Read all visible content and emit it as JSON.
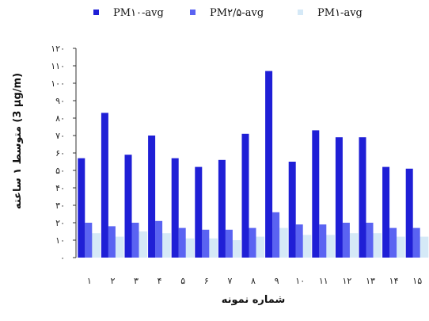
{
  "chart_data": {
    "type": "bar",
    "categories": [
      "١",
      "٢",
      "٣",
      "۴",
      "۵",
      "۶",
      "٧",
      "٨",
      "٩",
      "١٠",
      "١١",
      "١٢",
      "١٣",
      "١۴",
      "١۵"
    ],
    "series": [
      {
        "name": "PM١٠-avg",
        "color": "#1f1fd6",
        "values": [
          57,
          83,
          59,
          70,
          57,
          52,
          56,
          71,
          107,
          55,
          73,
          69,
          69,
          52,
          51
        ]
      },
      {
        "name": "PM٢/۵-avg",
        "color": "#5a63f2",
        "values": [
          20,
          18,
          20,
          21,
          17,
          16,
          16,
          17,
          26,
          19,
          19,
          20,
          20,
          17,
          17
        ]
      },
      {
        "name": "PM١-avg",
        "color": "#d5e9f7",
        "values": [
          14,
          12,
          15,
          14,
          11,
          11,
          10,
          12,
          17,
          13,
          13,
          14,
          14,
          12,
          12
        ]
      }
    ],
    "yticks": [
      "٠",
      "١٠",
      "٢٠",
      "٣٠",
      "۴٠",
      "۵٠",
      "۶٠",
      "٧٠",
      "٨٠",
      "٩٠",
      "١٠٠",
      "١١٠",
      "١٢٠"
    ],
    "ylim": [
      0,
      120
    ],
    "ylabel": "متوسط ۱ ساعته (3 µg/m)",
    "xlabel": "شماره نمونه",
    "legend_position": "top"
  }
}
